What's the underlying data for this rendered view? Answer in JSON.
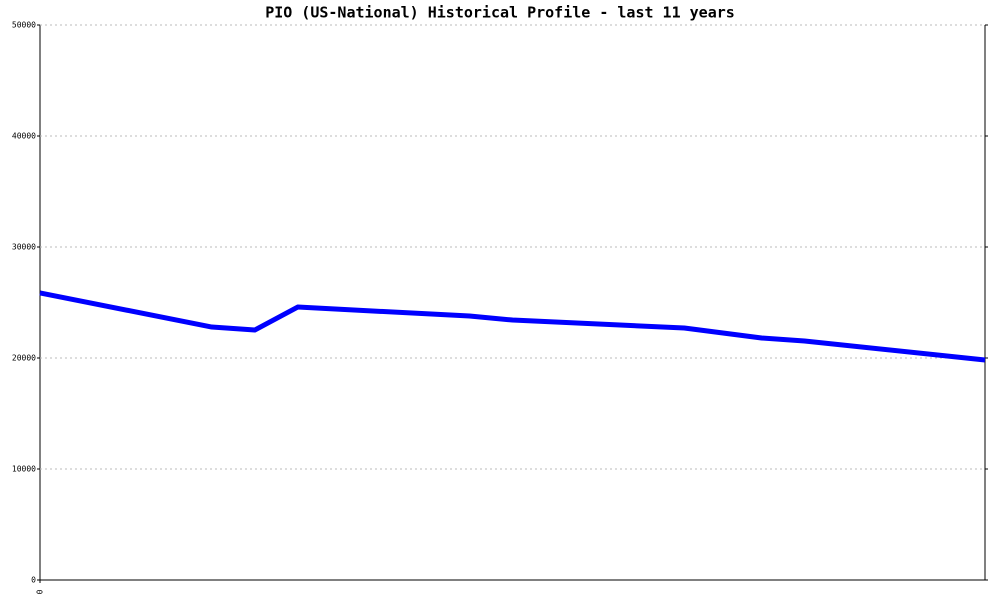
{
  "chart_data": {
    "type": "line",
    "title": "PIO (US-National) Historical Profile - last 11 years",
    "x": [
      0,
      2.0,
      2.5,
      3.0,
      5.0,
      5.5,
      7.5,
      8.4,
      8.9,
      11
    ],
    "series": [
      {
        "name": "PIO",
        "color": "#0000ff",
        "values": [
          25860,
          22790,
          22520,
          24590,
          23780,
          23420,
          22700,
          21800,
          21530,
          19820
        ]
      }
    ],
    "xlim": [
      0,
      11
    ],
    "xticks": [
      0
    ],
    "ylim": [
      0,
      50000
    ],
    "yticks": [
      0,
      10000,
      20000,
      30000,
      40000,
      50000
    ],
    "grid": true
  }
}
